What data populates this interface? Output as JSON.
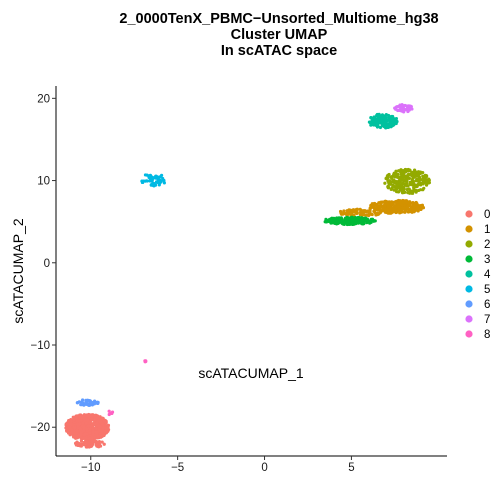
{
  "chart_data": {
    "type": "scatter",
    "title_lines": [
      "2_0000TenX_PBMC−Unsorted_Multiome_hg38",
      "Cluster UMAP",
      "In scATAC space"
    ],
    "xlabel": "scATACUMAP_1",
    "ylabel": "scATACUMAP_2",
    "xlim": [
      -12,
      10.5
    ],
    "ylim": [
      -23.5,
      21.5
    ],
    "x_ticks": [
      -10,
      -5,
      0,
      5
    ],
    "x_tick_labels": [
      "−10",
      "−5",
      "0",
      "5"
    ],
    "y_ticks": [
      -20,
      -10,
      0,
      10,
      20
    ],
    "y_tick_labels": [
      "−20",
      "−10",
      "0",
      "10",
      "20"
    ],
    "grid": false,
    "legend_position": "right",
    "series": [
      {
        "name": "0",
        "color": "#F8766D",
        "clusters": [
          {
            "cx": -10.2,
            "cy": -20.0,
            "rx": 1.25,
            "ry": 1.6,
            "n": 650
          },
          {
            "cx": -10.0,
            "cy": -22.0,
            "rx": 0.9,
            "ry": 0.45,
            "n": 60
          }
        ]
      },
      {
        "name": "1",
        "color": "#D39200",
        "clusters": [
          {
            "cx": 7.6,
            "cy": 6.8,
            "rx": 1.6,
            "ry": 0.8,
            "n": 280
          },
          {
            "cx": 5.5,
            "cy": 6.1,
            "rx": 1.2,
            "ry": 0.45,
            "n": 80
          }
        ]
      },
      {
        "name": "2",
        "color": "#93AA00",
        "clusters": [
          {
            "cx": 8.2,
            "cy": 9.9,
            "rx": 1.3,
            "ry": 1.5,
            "n": 260
          }
        ]
      },
      {
        "name": "3",
        "color": "#00BA38",
        "clusters": [
          {
            "cx": 4.9,
            "cy": 5.1,
            "rx": 1.5,
            "ry": 0.45,
            "n": 210
          }
        ]
      },
      {
        "name": "4",
        "color": "#00C19F",
        "clusters": [
          {
            "cx": 6.8,
            "cy": 17.2,
            "rx": 0.85,
            "ry": 0.9,
            "n": 150
          }
        ]
      },
      {
        "name": "5",
        "color": "#00B9E3",
        "clusters": [
          {
            "cx": -6.4,
            "cy": 10.1,
            "rx": 0.75,
            "ry": 0.75,
            "n": 55
          }
        ]
      },
      {
        "name": "6",
        "color": "#619CFF",
        "clusters": [
          {
            "cx": -10.2,
            "cy": -17.0,
            "rx": 0.65,
            "ry": 0.35,
            "n": 50
          }
        ]
      },
      {
        "name": "7",
        "color": "#DB72FB",
        "clusters": [
          {
            "cx": 8.0,
            "cy": 18.8,
            "rx": 0.55,
            "ry": 0.45,
            "n": 45
          }
        ]
      },
      {
        "name": "8",
        "color": "#FF61C3",
        "clusters": [
          {
            "cx": -6.9,
            "cy": -11.9,
            "rx": 0.15,
            "ry": 0.15,
            "n": 4
          },
          {
            "cx": -8.9,
            "cy": -18.3,
            "rx": 0.2,
            "ry": 0.3,
            "n": 5
          }
        ]
      }
    ]
  }
}
